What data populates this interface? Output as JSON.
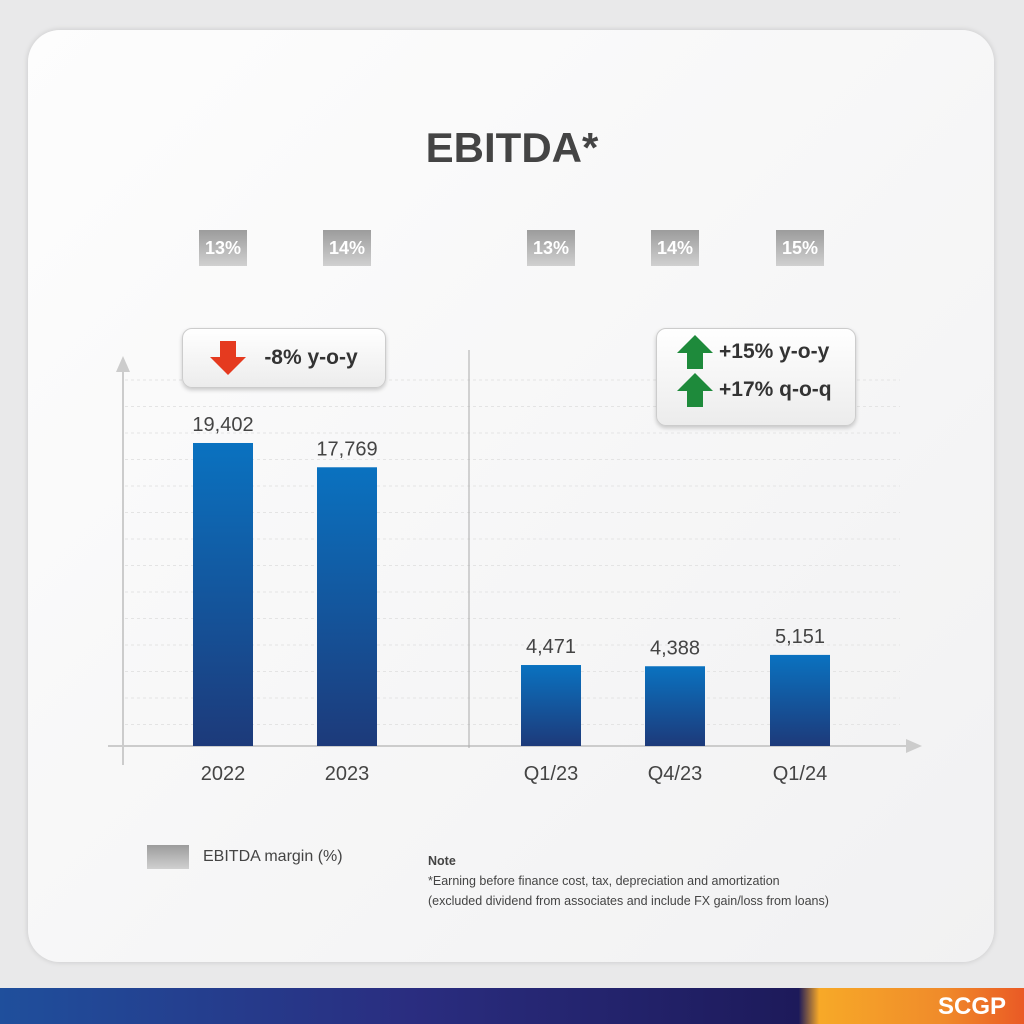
{
  "chart_data": {
    "type": "bar",
    "title": "EBITDA*",
    "categories": [
      "2022",
      "2023",
      "Q1/23",
      "Q4/23",
      "Q1/24"
    ],
    "values": [
      19402,
      17769,
      4471,
      4388,
      5151
    ],
    "data_labels": [
      "19,402",
      "17,769",
      "4,471",
      "4,388",
      "5,151"
    ],
    "margin_labels": [
      "13%",
      "14%",
      "13%",
      "14%",
      "15%"
    ],
    "series": [
      {
        "name": "EBITDA margin (%)",
        "values": [
          13,
          14,
          13,
          14,
          15
        ]
      }
    ],
    "grid": true,
    "bar_color_top": "#0a72c0",
    "bar_color_bottom": "#1d3a7a"
  },
  "annotations": {
    "annual": {
      "text": "-8% y-o-y",
      "arrow": "down-red"
    },
    "quarterly": [
      {
        "text": "+15% y-o-y",
        "arrow": "up-green"
      },
      {
        "text": "+17% q-o-q",
        "arrow": "up-green"
      }
    ]
  },
  "legend": {
    "label": "EBITDA margin (%)"
  },
  "note": {
    "heading": "Note",
    "line1": "*Earning before finance cost, tax, depreciation and amortization",
    "line2": "(excluded dividend from associates and include FX gain/loss from loans)"
  },
  "brand": {
    "logo": "SCGP"
  }
}
